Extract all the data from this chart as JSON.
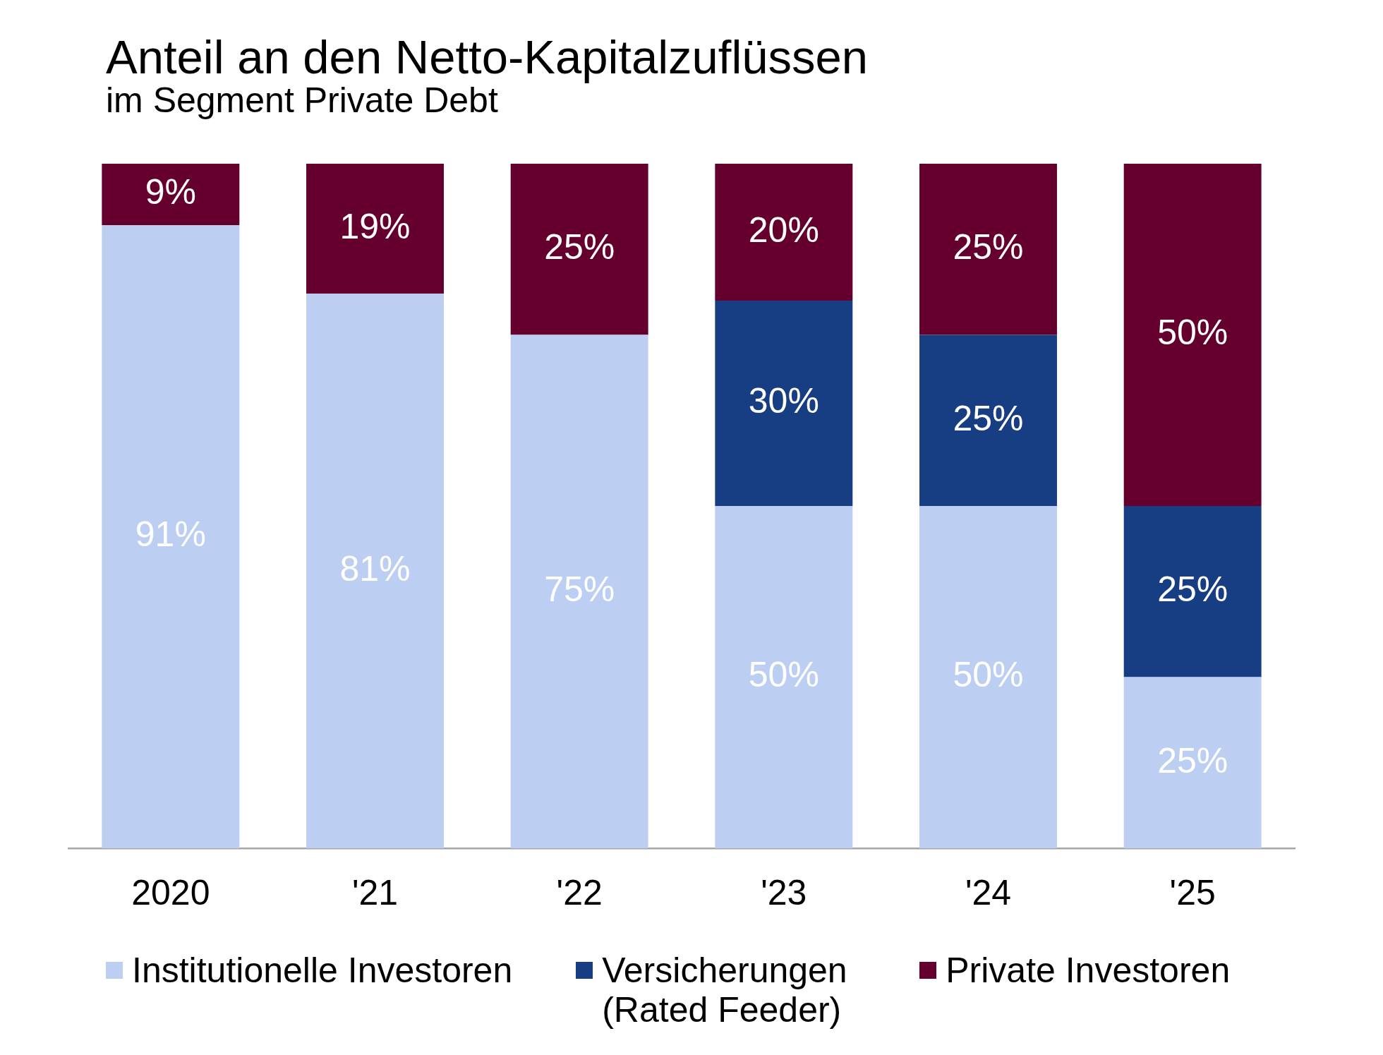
{
  "chart_data": {
    "type": "bar",
    "title": "Anteil an den Netto-Kapitalzuflüssen",
    "subtitle": "im Segment Private Debt",
    "categories": [
      "2020",
      "'21",
      "'22",
      "'23",
      "'24",
      "'25"
    ],
    "stacked": true,
    "ylim": [
      0,
      100
    ],
    "grid": false,
    "legend": "bottom",
    "tick_labels": "x",
    "series": [
      {
        "name": "Institutionelle Investoren",
        "color": "#bccff2",
        "values": [
          91,
          81,
          75,
          50,
          50,
          25
        ],
        "value_labels": [
          "91%",
          "81%",
          "75%",
          "50%",
          "50%",
          "25%"
        ]
      },
      {
        "name": "Versicherungen (Rated Feeder)",
        "color": "#173d82",
        "values": [
          null,
          null,
          null,
          30,
          25,
          25
        ],
        "value_labels": [
          null,
          null,
          null,
          "30%",
          "25%",
          "25%"
        ]
      },
      {
        "name": "Private Investoren",
        "color": "#65002e",
        "values": [
          9,
          19,
          25,
          20,
          25,
          50
        ],
        "value_labels": [
          "9%",
          "19%",
          "25%",
          "20%",
          "25%",
          "50%"
        ]
      }
    ]
  }
}
